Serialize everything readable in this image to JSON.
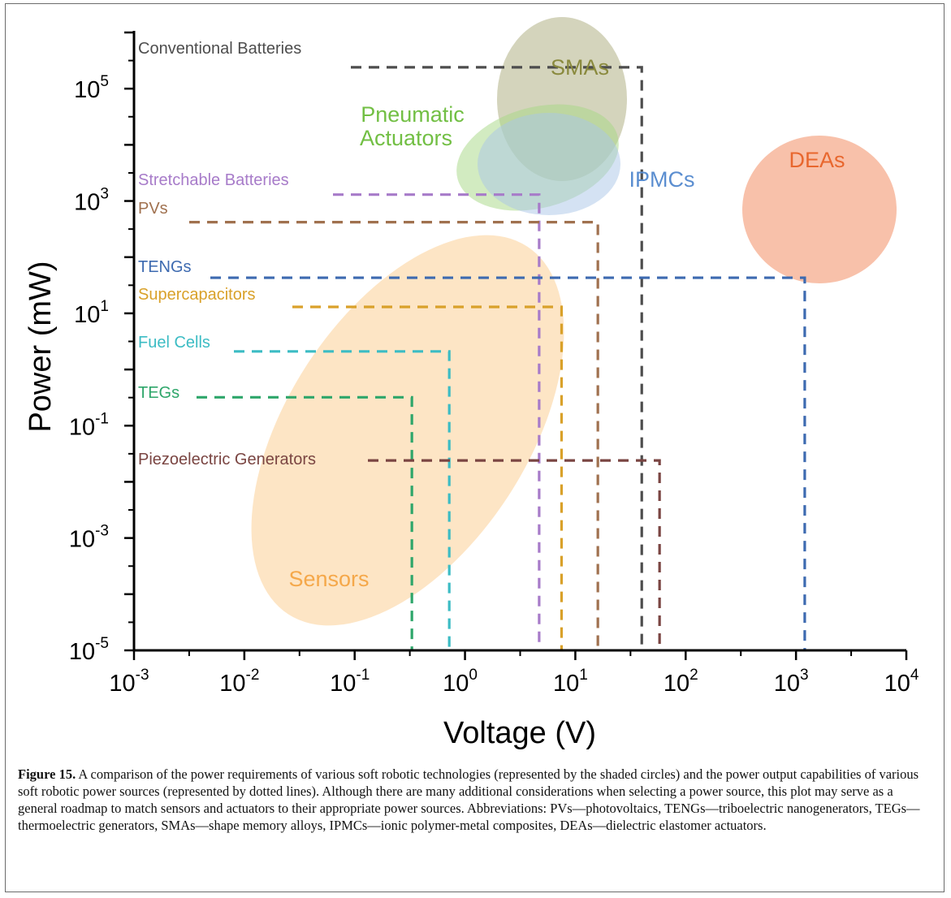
{
  "chart_data": {
    "type": "scatter",
    "xlabel": "Voltage (V)",
    "ylabel": "Power (mW)",
    "x_scale": "log",
    "y_scale": "log",
    "xlim": [
      0.001,
      10000
    ],
    "ylim": [
      1e-05,
      1000000
    ],
    "x_ticks": [
      {
        "value": 0.001,
        "base": "10",
        "exp": "-3"
      },
      {
        "value": 0.01,
        "base": "10",
        "exp": "-2"
      },
      {
        "value": 0.1,
        "base": "10",
        "exp": "-1"
      },
      {
        "value": 1,
        "base": "10",
        "exp": "0"
      },
      {
        "value": 10,
        "base": "10",
        "exp": "1"
      },
      {
        "value": 100,
        "base": "10",
        "exp": "2"
      },
      {
        "value": 1000,
        "base": "10",
        "exp": "3"
      },
      {
        "value": 10000,
        "base": "10",
        "exp": "4"
      }
    ],
    "y_ticks": [
      {
        "value": 1e-05,
        "base": "10",
        "exp": "-5"
      },
      {
        "value": 0.001,
        "base": "10",
        "exp": "-3"
      },
      {
        "value": 0.1,
        "base": "10",
        "exp": "-1"
      },
      {
        "value": 10,
        "base": "10",
        "exp": "1"
      },
      {
        "value": 1000,
        "base": "10",
        "exp": "3"
      },
      {
        "value": 100000,
        "base": "10",
        "exp": "5"
      }
    ],
    "power_sources": [
      {
        "name": "Conventional Batteries",
        "voltage": 40,
        "power": 240000,
        "color": "#4d4d4d"
      },
      {
        "name": "Stretchable Batteries",
        "voltage": 4.7,
        "power": 1300,
        "color": "#a77bc9"
      },
      {
        "name": "PVs",
        "voltage": 16,
        "power": 420,
        "color": "#a0714f"
      },
      {
        "name": "TENGs",
        "voltage": 1200,
        "power": 43,
        "color": "#3d6ab0"
      },
      {
        "name": "Supercapacitors",
        "voltage": 7.5,
        "power": 13,
        "color": "#d9a12a"
      },
      {
        "name": "Fuel Cells",
        "voltage": 0.72,
        "power": 2.1,
        "color": "#3cbcc4"
      },
      {
        "name": "TEGs",
        "voltage": 0.33,
        "power": 0.32,
        "color": "#2ea66a"
      },
      {
        "name": "Piezoelectric Generators",
        "voltage": 58,
        "power": 0.024,
        "color": "#7a4542"
      }
    ],
    "technologies": [
      {
        "name": "SMAs",
        "color": "#a9a979",
        "opacity": 0.5,
        "label_color": "#8a8a3e"
      },
      {
        "name": "Pneumatic Actuators",
        "label_lines": [
          "Pneumatic",
          "Actuators"
        ],
        "color": "#a5d884",
        "opacity": 0.5,
        "label_color": "#72bf44"
      },
      {
        "name": "IPMCs",
        "color": "#a9c5e8",
        "opacity": 0.5,
        "label_color": "#5b8ed0"
      },
      {
        "name": "DEAs",
        "color": "#f59f7d",
        "opacity": 0.65,
        "label_color": "#e8672e"
      },
      {
        "name": "Sensors",
        "color": "#fbc67e",
        "opacity": 0.45,
        "label_color": "#f5a84a"
      }
    ]
  },
  "caption": {
    "label": "Figure 15.",
    "text": " A comparison of the power requirements of various soft robotic technologies (represented by the shaded circles) and the power output capabilities of various soft robotic power sources (represented by dotted lines). Although there are many additional considerations when selecting a power source, this plot may serve as a general roadmap to match sensors and actuators to their appropriate power sources. Abbreviations: PVs—photovoltaics, TENGs—triboelectric nanogenerators, TEGs—thermoelectric generators, SMAs—shape memory alloys, IPMCs—ionic polymer-metal composites, DEAs—dielectric elastomer actuators."
  }
}
